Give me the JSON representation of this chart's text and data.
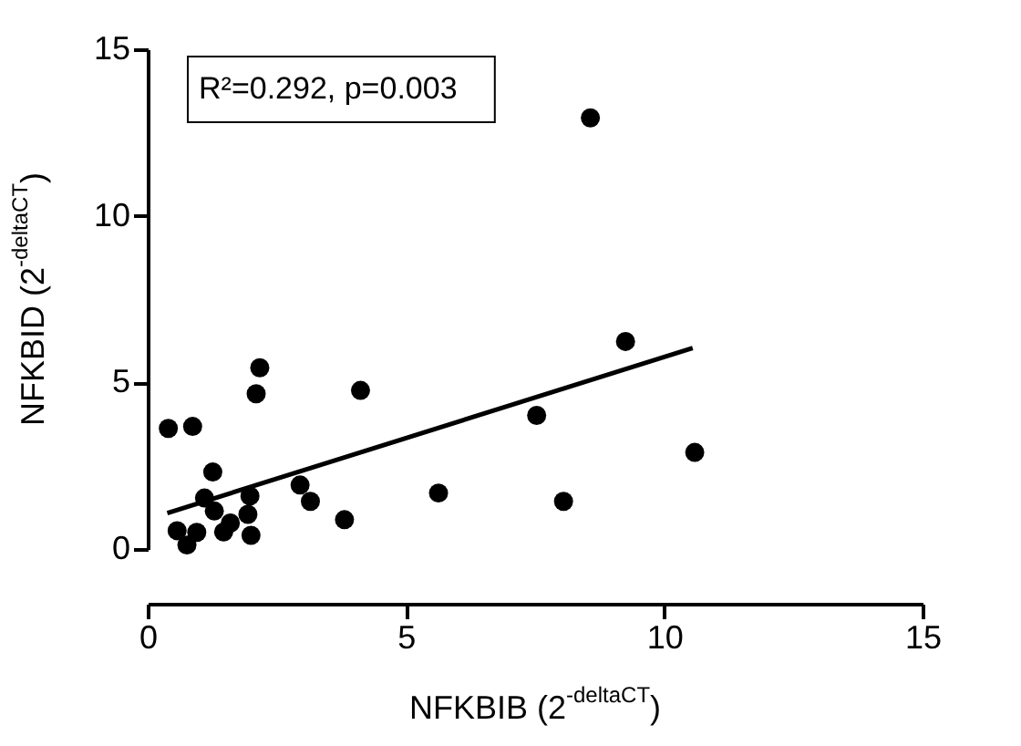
{
  "chart_data": {
    "type": "scatter",
    "xlabel": "NFKBIB (2$^{-deltaCT}$)",
    "ylabel": "NFKBID (2$^{-deltaCT}$)",
    "annotations": [
      "R²=0.292, p=0.003"
    ],
    "xlim": [
      0,
      15
    ],
    "xticks": [
      0,
      5,
      10,
      15
    ],
    "ylim": [
      0,
      15
    ],
    "yticks": [
      0,
      5,
      10,
      15
    ],
    "grid": false,
    "series": [
      {
        "marker": "circle",
        "color": "#000000",
        "x": [
          0.4,
          0.87,
          1.26,
          1.1,
          1.29,
          0.57,
          0.76,
          0.95,
          1.47,
          1.6,
          1.98,
          1.94,
          2.0,
          2.1,
          2.17,
          2.95,
          3.15,
          3.81,
          4.12,
          5.63,
          7.53,
          8.05,
          8.57,
          9.25,
          10.59
        ],
        "values": [
          3.62,
          3.68,
          2.31,
          1.53,
          1.14,
          0.55,
          0.12,
          0.5,
          0.51,
          0.78,
          1.59,
          1.04,
          0.41,
          4.66,
          5.44,
          1.92,
          1.43,
          0.88,
          4.76,
          1.68,
          4.01,
          1.43,
          12.94,
          6.23,
          2.9
        ]
      },
      {
        "type": "line",
        "line_style": "solid",
        "color": "#000000",
        "x": [
          0.38,
          10.55
        ],
        "values": [
          1.08,
          6.03
        ]
      }
    ]
  }
}
